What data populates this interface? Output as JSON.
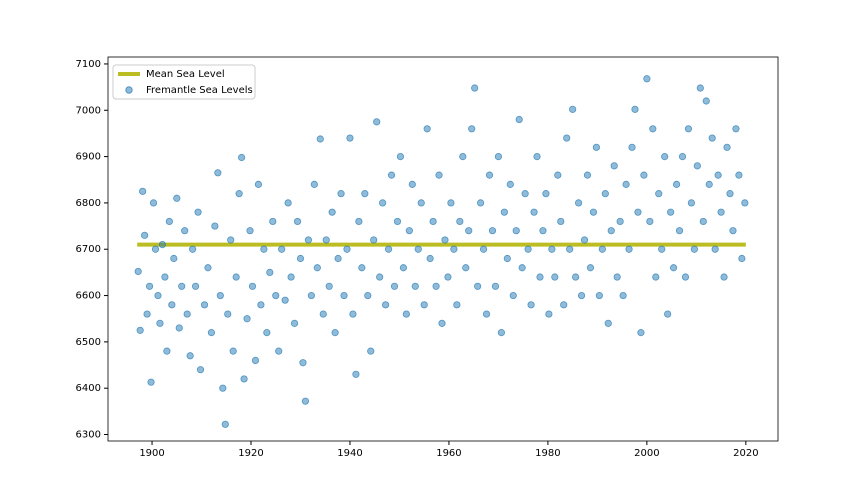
{
  "chart_data": {
    "type": "scatter",
    "series": [
      {
        "name": "Mean Sea Level",
        "type": "line",
        "color": "#bcbd22",
        "x": [
          1897,
          2020
        ],
        "values": [
          6710,
          6710
        ]
      },
      {
        "name": "Fremantle Sea Levels",
        "type": "scatter",
        "color": "#1f77b4",
        "x": [
          1897.2,
          1897.6,
          1898.1,
          1898.5,
          1899.0,
          1899.5,
          1899.8,
          1900.3,
          1900.7,
          1901.2,
          1901.6,
          1902.1,
          1902.6,
          1903.0,
          1903.5,
          1904.0,
          1904.4,
          1905.0,
          1905.5,
          1906.0,
          1906.6,
          1907.1,
          1907.7,
          1908.2,
          1908.8,
          1909.3,
          1909.8,
          1910.6,
          1911.3,
          1912.0,
          1912.7,
          1913.3,
          1913.8,
          1914.3,
          1914.8,
          1915.3,
          1915.9,
          1916.4,
          1917.0,
          1917.6,
          1918.1,
          1918.6,
          1919.2,
          1919.8,
          1920.3,
          1920.9,
          1921.5,
          1922.0,
          1922.6,
          1923.2,
          1923.8,
          1924.4,
          1925.0,
          1925.6,
          1926.2,
          1926.9,
          1927.5,
          1928.1,
          1928.8,
          1929.4,
          1930.0,
          1930.5,
          1931.0,
          1931.6,
          1932.2,
          1932.8,
          1933.4,
          1934.0,
          1934.6,
          1935.2,
          1935.8,
          1936.4,
          1937.0,
          1937.6,
          1938.2,
          1938.8,
          1939.4,
          1940.0,
          1940.6,
          1941.2,
          1941.8,
          1942.4,
          1943.0,
          1943.6,
          1944.2,
          1944.8,
          1945.4,
          1946.0,
          1946.6,
          1947.2,
          1947.8,
          1948.4,
          1949.0,
          1949.6,
          1950.2,
          1950.8,
          1951.4,
          1952.0,
          1952.6,
          1953.2,
          1953.8,
          1954.4,
          1955.0,
          1955.6,
          1956.2,
          1956.8,
          1957.4,
          1958.0,
          1958.6,
          1959.2,
          1959.8,
          1960.4,
          1961.0,
          1961.6,
          1962.2,
          1962.8,
          1963.4,
          1964.0,
          1964.6,
          1965.2,
          1965.8,
          1966.4,
          1967.0,
          1967.6,
          1968.2,
          1968.8,
          1969.4,
          1970.0,
          1970.6,
          1971.2,
          1971.8,
          1972.4,
          1973.0,
          1973.6,
          1974.2,
          1974.8,
          1975.4,
          1976.0,
          1976.6,
          1977.2,
          1977.8,
          1978.4,
          1979.0,
          1979.6,
          1980.2,
          1980.8,
          1981.4,
          1982.0,
          1982.6,
          1983.2,
          1983.8,
          1984.4,
          1985.0,
          1985.6,
          1986.2,
          1986.8,
          1987.4,
          1988.0,
          1988.6,
          1989.2,
          1989.8,
          1990.4,
          1991.0,
          1991.6,
          1992.2,
          1992.8,
          1993.4,
          1994.0,
          1994.6,
          1995.2,
          1995.8,
          1996.4,
          1997.0,
          1997.6,
          1998.2,
          1998.8,
          1999.4,
          2000.0,
          2000.6,
          2001.2,
          2001.8,
          2002.4,
          2003.0,
          2003.6,
          2004.2,
          2004.8,
          2005.4,
          2006.0,
          2006.6,
          2007.2,
          2007.8,
          2008.4,
          2009.0,
          2009.6,
          2010.2,
          2010.8,
          2011.4,
          2012.0,
          2012.6,
          2013.2,
          2013.8,
          2014.4,
          2015.0,
          2015.6,
          2016.2,
          2016.8,
          2017.4,
          2018.0,
          2018.6,
          2019.2,
          2019.8
        ],
        "values": [
          6652,
          6525,
          6825,
          6730,
          6560,
          6620,
          6413,
          6800,
          6700,
          6600,
          6540,
          6710,
          6640,
          6480,
          6760,
          6580,
          6680,
          6810,
          6530,
          6620,
          6740,
          6560,
          6470,
          6700,
          6620,
          6780,
          6440,
          6580,
          6660,
          6520,
          6750,
          6865,
          6600,
          6400,
          6322,
          6560,
          6720,
          6480,
          6640,
          6820,
          6898,
          6420,
          6550,
          6740,
          6620,
          6460,
          6840,
          6580,
          6700,
          6520,
          6650,
          6760,
          6600,
          6480,
          6700,
          6590,
          6800,
          6640,
          6540,
          6760,
          6680,
          6455,
          6372,
          6720,
          6600,
          6840,
          6660,
          6938,
          6560,
          6720,
          6620,
          6780,
          6520,
          6680,
          6820,
          6600,
          6700,
          6940,
          6560,
          6430,
          6760,
          6660,
          6820,
          6600,
          6480,
          6720,
          6975,
          6640,
          6800,
          6580,
          6700,
          6860,
          6620,
          6760,
          6900,
          6660,
          6560,
          6740,
          6840,
          6620,
          6700,
          6800,
          6580,
          6960,
          6680,
          6760,
          6620,
          6860,
          6540,
          6720,
          6640,
          6800,
          6700,
          6580,
          6760,
          6900,
          6660,
          6740,
          6960,
          7048,
          6620,
          6800,
          6700,
          6560,
          6860,
          6740,
          6620,
          6900,
          6520,
          6780,
          6680,
          6840,
          6600,
          6740,
          6980,
          6660,
          6820,
          6700,
          6580,
          6780,
          6900,
          6640,
          6740,
          6820,
          6560,
          6700,
          6640,
          6860,
          6760,
          6580,
          6940,
          6700,
          7002,
          6640,
          6800,
          6600,
          6720,
          6860,
          6660,
          6780,
          6920,
          6600,
          6700,
          6820,
          6540,
          6740,
          6880,
          6640,
          6760,
          6600,
          6840,
          6700,
          6920,
          7002,
          6780,
          6520,
          6860,
          7068,
          6760,
          6960,
          6640,
          6820,
          6700,
          6900,
          6560,
          6780,
          6660,
          6840,
          6740,
          6900,
          6640,
          6960,
          6800,
          6700,
          6880,
          7048,
          6760,
          7020,
          6840,
          6940,
          6700,
          6860,
          6780,
          6640,
          6920,
          6820,
          6740,
          6960,
          6860,
          6680,
          6800
        ]
      }
    ],
    "xlim": [
      1891.1,
      2026.5
    ],
    "ylim": [
      6286,
      7115
    ],
    "xticks": [
      1900,
      1920,
      1940,
      1960,
      1980,
      2000,
      2020
    ],
    "yticks": [
      6300,
      6400,
      6500,
      6600,
      6700,
      6800,
      6900,
      7000,
      7100
    ],
    "legend": "upper left"
  }
}
